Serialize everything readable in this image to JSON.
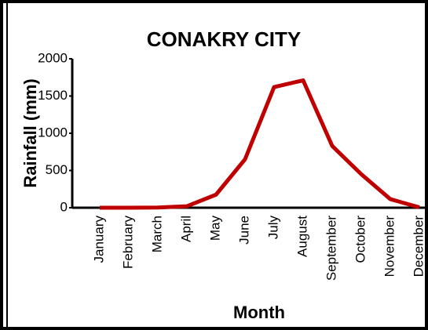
{
  "chart_data": {
    "type": "line",
    "title": "CONAKRY CITY",
    "x_label": "Month",
    "y_label": "Rainfall (mm)",
    "categories": [
      "January",
      "February",
      "March",
      "April",
      "May",
      "June",
      "July",
      "August",
      "September",
      "October",
      "November",
      "December"
    ],
    "series": [
      {
        "name": "Rainfall",
        "color": "#c00000",
        "values": [
          0,
          0,
          3,
          20,
          175,
          650,
          1620,
          1710,
          830,
          450,
          115,
          5
        ]
      }
    ],
    "ylim": [
      0,
      2000
    ],
    "yticks": [
      0,
      500,
      1000,
      1500,
      2000
    ]
  }
}
